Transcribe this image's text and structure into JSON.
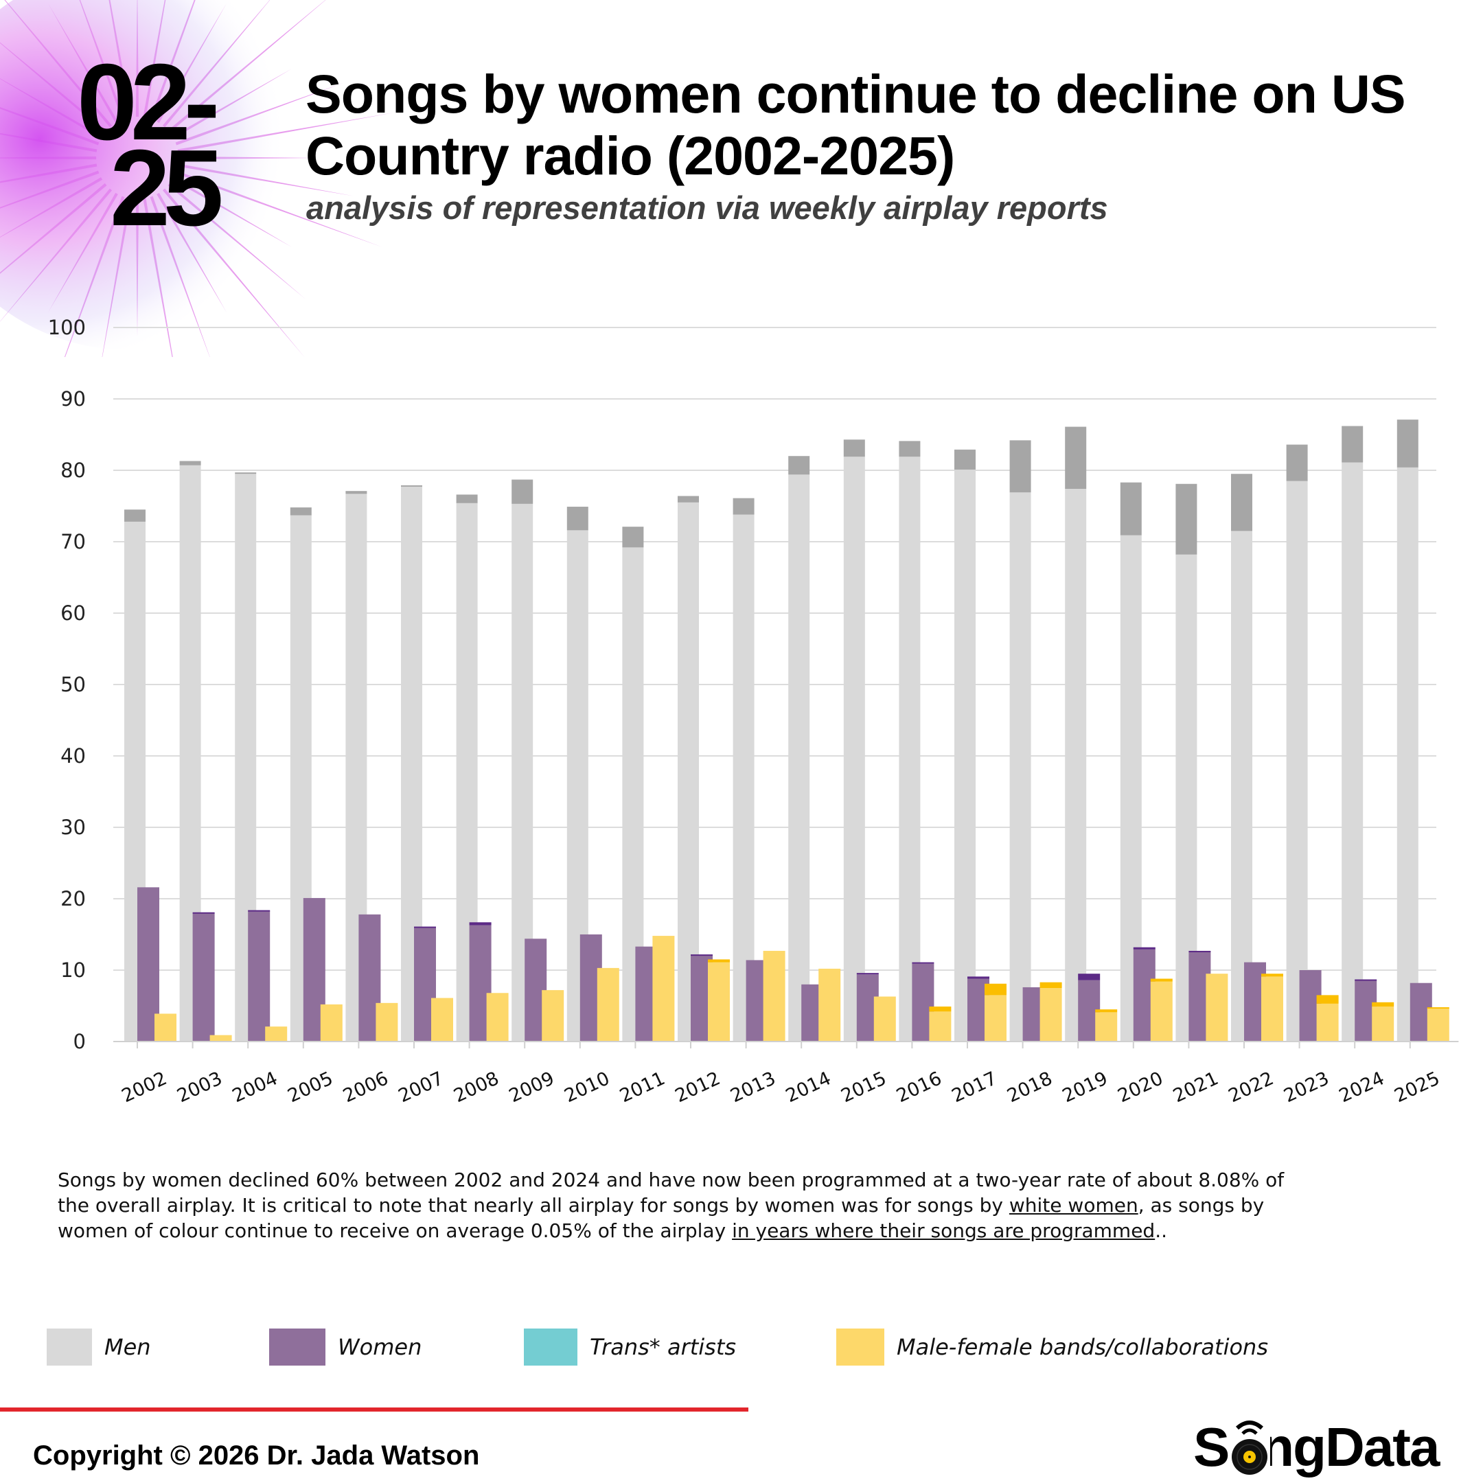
{
  "header": {
    "logo_line1": "02-",
    "logo_line2": "25",
    "title_line1": "Songs by women continue to decline on US",
    "title_line2": "Country radio (2002-2025)",
    "subtitle": "analysis of representation via weekly airplay reports"
  },
  "colors": {
    "men": "#d9d9d9",
    "men_top": "#a6a6a6",
    "women": "#8f6f9b",
    "women_top": "#5c2a86",
    "trans": "#74cdd2",
    "collab": "#fdd86a",
    "collab_top": "#fbbe00",
    "grid": "#dcdcdc",
    "accent_red": "#e2262c"
  },
  "chart_data": {
    "type": "bar",
    "title": "Songs by women continue to decline on US Country radio (2002-2025)",
    "xlabel": "",
    "ylabel": "",
    "ylim": [
      0,
      100
    ],
    "yticks": [
      "0",
      "10",
      "20",
      "30",
      "40",
      "50",
      "60",
      "70",
      "80",
      "90",
      "100"
    ],
    "grid": true,
    "categories": [
      "2002",
      "2003",
      "2004",
      "2005",
      "2006",
      "2007",
      "2008",
      "2009",
      "2010",
      "2011",
      "2012",
      "2013",
      "2014",
      "2015",
      "2016",
      "2017",
      "2018",
      "2019",
      "2020",
      "2021",
      "2022",
      "2023",
      "2024",
      "2025"
    ],
    "series": [
      {
        "name": "Men",
        "key": "men",
        "stack_base": [
          72.8,
          80.7,
          79.5,
          73.7,
          76.7,
          77.8,
          75.4,
          75.3,
          71.6,
          69.2,
          75.5,
          73.8,
          79.4,
          81.9,
          81.9,
          80.1,
          76.9,
          77.4,
          70.9,
          68.2,
          71.5,
          78.5,
          81.1,
          80.4
        ],
        "stack_top": [
          1.7,
          0.6,
          0.2,
          1.1,
          0.4,
          0.1,
          1.2,
          3.4,
          3.3,
          2.9,
          0.9,
          2.3,
          2.6,
          2.4,
          2.2,
          2.8,
          7.3,
          8.7,
          7.4,
          9.9,
          8.0,
          5.1,
          5.1,
          6.7
        ]
      },
      {
        "name": "Women",
        "key": "women",
        "stack_base": [
          21.6,
          18.0,
          18.3,
          20.1,
          17.8,
          16.0,
          16.3,
          14.4,
          15.0,
          13.3,
          12.1,
          11.4,
          8.0,
          9.4,
          10.9,
          8.8,
          7.6,
          8.6,
          12.9,
          12.5,
          11.1,
          10.0,
          8.6,
          8.2
        ],
        "stack_top": [
          0,
          0.1,
          0.1,
          0,
          0,
          0.1,
          0.4,
          0,
          0,
          0,
          0.1,
          0,
          0,
          0.2,
          0.2,
          0.3,
          0,
          0.9,
          0.3,
          0.2,
          0,
          0,
          0.1,
          0
        ]
      },
      {
        "name": "Trans* artists",
        "key": "trans",
        "values": [
          0,
          0,
          0,
          0,
          0,
          0,
          0,
          0,
          0,
          0,
          0,
          0,
          0,
          0,
          0,
          0,
          0,
          0,
          0.1,
          0.1,
          0.1,
          0.1,
          0,
          0
        ]
      },
      {
        "name": "Male-female bands/collaborations",
        "key": "collab",
        "stack_base": [
          3.9,
          0.9,
          2.1,
          5.2,
          5.4,
          6.1,
          6.8,
          7.2,
          10.3,
          14.8,
          11.1,
          12.7,
          10.2,
          6.3,
          4.2,
          6.5,
          7.5,
          4.1,
          8.4,
          9.5,
          9.1,
          5.3,
          4.9,
          4.7
        ],
        "stack_top": [
          0,
          0,
          0,
          0,
          0,
          0,
          0,
          0,
          0,
          0,
          0.4,
          0,
          0,
          0,
          0.7,
          1.6,
          0.8,
          0.4,
          0.4,
          0,
          0.4,
          1.2,
          0.6,
          0.1
        ]
      }
    ],
    "legend_position": "bottom"
  },
  "note": {
    "part1": "Songs by women declined 60% between 2002 and 2024 and have now been programmed at a two-year rate of about 8.08% of the overall airplay. It is critical to note that nearly all airplay for songs by women was for songs by ",
    "link1": "white women",
    "part2": ", as songs by women of colour continue to receive on average 0.05% of the airplay ",
    "link2": "in years where their songs are programmed",
    "part3": ".."
  },
  "legend": [
    {
      "label": "Men",
      "key": "men"
    },
    {
      "label": "Women",
      "key": "women"
    },
    {
      "label": "Trans* artists",
      "key": "trans"
    },
    {
      "label": "Male-female bands/collaborations",
      "key": "collab"
    }
  ],
  "footer": {
    "copyright": "Copyright © 2026 Dr. Jada Watson",
    "brand": "SongData"
  }
}
